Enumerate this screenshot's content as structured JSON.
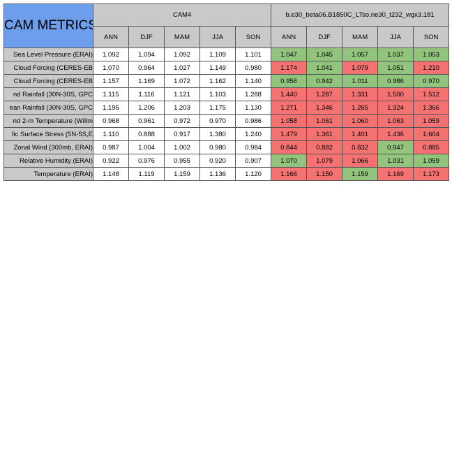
{
  "title": "CAM METRICS",
  "groups": [
    "CAM4",
    "b.e30_beta06.B1850C_LTso.ne30_t232_wgx3.181"
  ],
  "seasons": [
    "ANN",
    "DJF",
    "MAM",
    "JJA",
    "SON"
  ],
  "rows": [
    {
      "label": "Sea Level Pressure (ERAI)",
      "cam4": [
        "1.092",
        "1.094",
        "1.092",
        "1.109",
        "1.101"
      ],
      "run": [
        "1.047",
        "1.045",
        "1.057",
        "1.037",
        "1.053"
      ],
      "run_status": [
        "green",
        "green",
        "green",
        "green",
        "green"
      ]
    },
    {
      "label": "Cloud Forcing (CERES-EB",
      "cam4": [
        "1.070",
        "0.964",
        "1.027",
        "1.149",
        "0.980"
      ],
      "run": [
        "1.174",
        "1.041",
        "1.079",
        "1.051",
        "1.210"
      ],
      "run_status": [
        "red",
        "green",
        "red",
        "green",
        "red"
      ]
    },
    {
      "label": "Cloud Forcing (CERES-EB",
      "cam4": [
        "1.157",
        "1.169",
        "1.072",
        "1.162",
        "1.140"
      ],
      "run": [
        "0.956",
        "0.942",
        "1.011",
        "0.986",
        "0.970"
      ],
      "run_status": [
        "green",
        "green",
        "green",
        "green",
        "green"
      ]
    },
    {
      "label": "nd Rainfall (30N-30S, GPC",
      "cam4": [
        "1.115",
        "1.116",
        "1.121",
        "1.103",
        "1.288"
      ],
      "run": [
        "1.440",
        "1.287",
        "1.331",
        "1.500",
        "1.512"
      ],
      "run_status": [
        "red",
        "red",
        "red",
        "red",
        "red"
      ]
    },
    {
      "label": "ean Rainfall (30N-30S, GPC",
      "cam4": [
        "1.195",
        "1.206",
        "1.203",
        "1.175",
        "1.130"
      ],
      "run": [
        "1.271",
        "1.346",
        "1.265",
        "1.324",
        "1.366"
      ],
      "run_status": [
        "red",
        "red",
        "red",
        "red",
        "red"
      ]
    },
    {
      "label": "nd 2-m Temperature (Willm",
      "cam4": [
        "0.968",
        "0.961",
        "0.972",
        "0.970",
        "0.986"
      ],
      "run": [
        "1.058",
        "1.061",
        "1.060",
        "1.063",
        "1.059"
      ],
      "run_status": [
        "red",
        "red",
        "red",
        "red",
        "red"
      ]
    },
    {
      "label": "fic Surface Stress (5N-5S,E",
      "cam4": [
        "1.110",
        "0.888",
        "0.917",
        "1.380",
        "1.240"
      ],
      "run": [
        "1.479",
        "1.361",
        "1.401",
        "1.436",
        "1.604"
      ],
      "run_status": [
        "red",
        "red",
        "red",
        "red",
        "red"
      ]
    },
    {
      "label": "Zonal Wind (300mb, ERAI)",
      "cam4": [
        "0.987",
        "1.004",
        "1.002",
        "0.980",
        "0.984"
      ],
      "run": [
        "0.844",
        "0.882",
        "0.832",
        "0.947",
        "0.885"
      ],
      "run_status": [
        "red",
        "red",
        "red",
        "green",
        "red"
      ]
    },
    {
      "label": "Relative Humidity (ERAI)",
      "cam4": [
        "0.922",
        "0.976",
        "0.955",
        "0.920",
        "0.907"
      ],
      "run": [
        "1.070",
        "1.079",
        "1.066",
        "1.031",
        "1.059"
      ],
      "run_status": [
        "green",
        "red",
        "red",
        "green",
        "green"
      ]
    },
    {
      "label": "Temperature (ERAI)",
      "cam4": [
        "1.148",
        "1.119",
        "1.159",
        "1.136",
        "1.120"
      ],
      "run": [
        "1.166",
        "1.150",
        "1.159",
        "1.169",
        "1.173"
      ],
      "run_status": [
        "red",
        "red",
        "green",
        "red",
        "red"
      ]
    }
  ],
  "colors": {
    "header_blue": "#6d9eeb",
    "header_gray": "#c9c9c9",
    "better_green": "#93c47d",
    "worse_red": "#f47272"
  }
}
